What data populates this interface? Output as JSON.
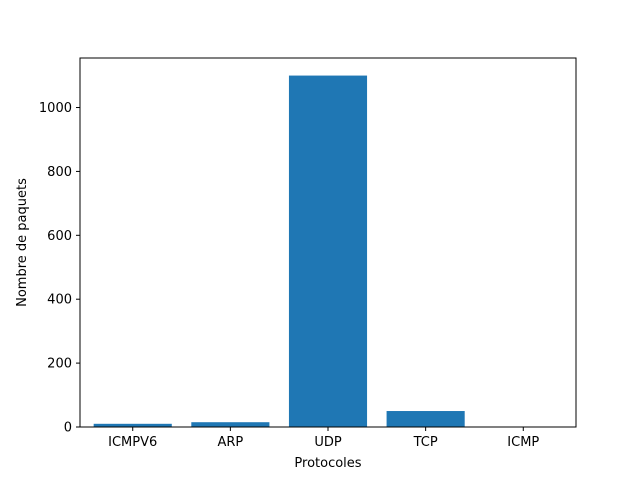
{
  "chart_data": {
    "type": "bar",
    "title": "",
    "xlabel": "Protocoles",
    "ylabel": "Nombre de paquets",
    "categories": [
      "ICMPV6",
      "ARP",
      "UDP",
      "TCP",
      "ICMP"
    ],
    "values": [
      10,
      15,
      1100,
      50,
      1
    ],
    "ylim": [
      0,
      1155
    ],
    "yticks": [
      0,
      200,
      400,
      600,
      800,
      1000
    ],
    "grid": false,
    "legend": "none",
    "bar_color": "#1f77b4"
  }
}
